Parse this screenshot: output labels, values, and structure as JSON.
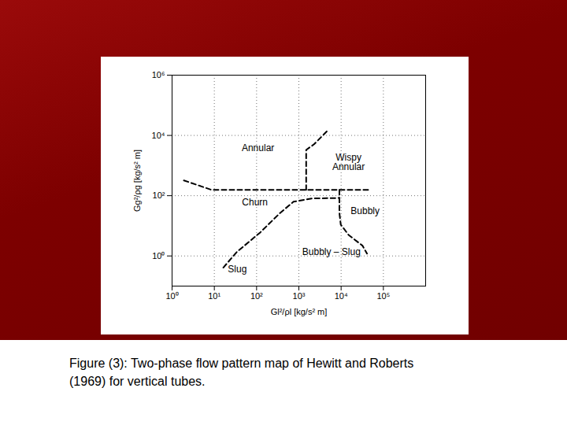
{
  "chart_data": {
    "type": "line",
    "caption": "Figure (3): Two-phase flow pattern map of Hewitt and Roberts (1969) for vertical tubes.",
    "x_label": "Gl²/ρl [kg/s² m]",
    "y_label": "Gg²/ρg [kg/s² m]",
    "log": true,
    "grid": true,
    "color": "#000000",
    "line_style": "dashed",
    "xlim": [
      1,
      1000000
    ],
    "ylim": [
      0.1,
      1000000
    ],
    "xticks": [
      {
        "value": 1,
        "label": "10⁰"
      },
      {
        "value": 10,
        "label": "10¹"
      },
      {
        "value": 100,
        "label": "10²"
      },
      {
        "value": 1000,
        "label": "10³"
      },
      {
        "value": 10000,
        "label": "10⁴"
      },
      {
        "value": 100000,
        "label": "10⁵"
      }
    ],
    "yticks": [
      {
        "value": 1,
        "label": "10⁰"
      },
      {
        "value": 100,
        "label": "10²"
      },
      {
        "value": 10000,
        "label": "10⁴"
      },
      {
        "value": 1000000,
        "label": "10⁶"
      }
    ],
    "boundaries": [
      {
        "x": [
          1.9,
          8.6,
          50000
        ],
        "y": [
          322,
          156,
          156
        ]
      },
      {
        "x": [
          1490,
          1490,
          2290,
          4900
        ],
        "y": [
          156,
          3300,
          5100,
          15000
        ]
      },
      {
        "x": [
          16.3,
          34,
          123,
          363,
          745,
          2000,
          9100
        ],
        "y": [
          0.41,
          1.35,
          6.1,
          27,
          63,
          81,
          84
        ]
      },
      {
        "x": [
          9100,
          9100,
          9800,
          15000,
          32000,
          41000
        ],
        "y": [
          156,
          27,
          11,
          5,
          2.2,
          1.2
        ]
      }
    ],
    "annotations": [
      {
        "text": "Annular",
        "x": 108,
        "y": 3800
      },
      {
        "text": "Wispy\nAnnular",
        "x": 15000,
        "y": 1300
      },
      {
        "text": "Churn",
        "x": 91,
        "y": 60
      },
      {
        "text": "Bubbly",
        "x": 37000,
        "y": 31
      },
      {
        "text": "Bubbly – Slug",
        "x": 5900,
        "y": 1.35
      },
      {
        "text": "Slug",
        "x": 35,
        "y": 0.36
      }
    ]
  }
}
